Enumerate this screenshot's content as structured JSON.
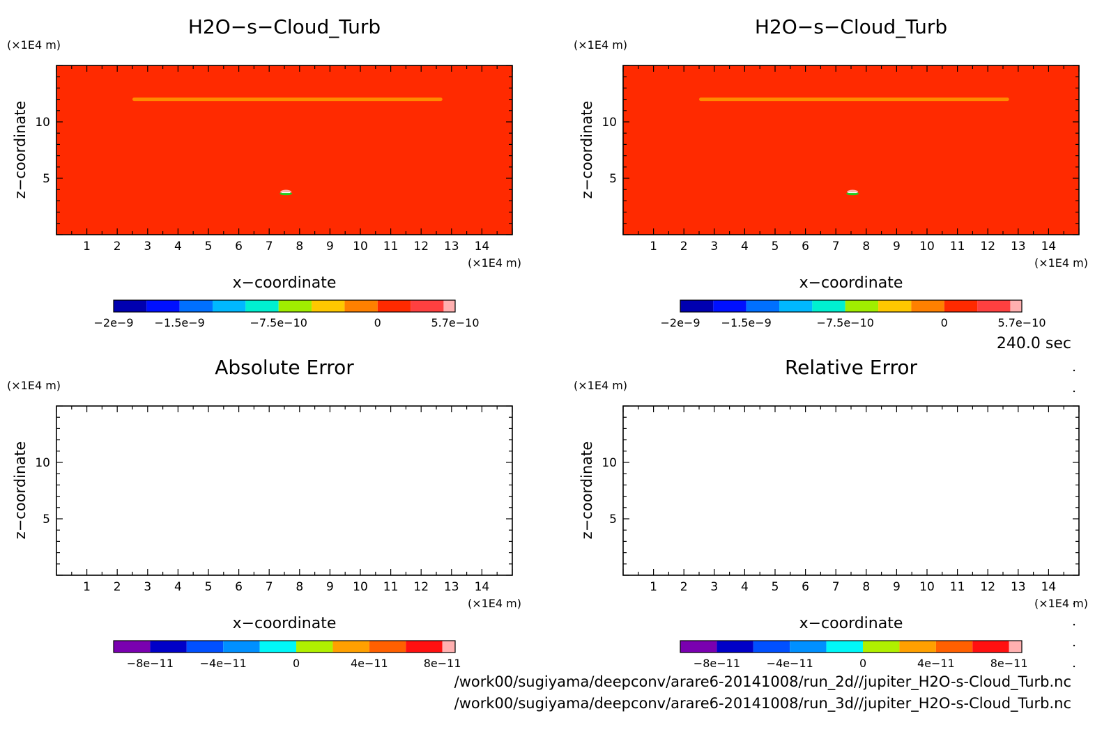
{
  "time_label": "240.0 sec",
  "file_paths": [
    "/work00/sugiyama/deepconv/arare6-20141008/run_2d//jupiter_H2O-s-Cloud_Turb.nc",
    "/work00/sugiyama/deepconv/arare6-20141008/run_3d//jupiter_H2O-s-Cloud_Turb.nc"
  ],
  "colors": {
    "field_background": "#ff2a00",
    "cloud_band": "#ff8a00",
    "anomaly_core": "#22cc22"
  },
  "chart_data": [
    {
      "type": "heatmap",
      "title": "H2O−s−Cloud_Turb",
      "xlabel": "x−coordinate",
      "ylabel": "z−coordinate",
      "x_unit": "(×1E4 m)",
      "y_unit": "(×1E4 m)",
      "xlim": [
        0,
        15
      ],
      "ylim": [
        0,
        15
      ],
      "x_ticks": [
        "1",
        "2",
        "3",
        "4",
        "5",
        "6",
        "7",
        "8",
        "9",
        "10",
        "11",
        "12",
        "13",
        "14"
      ],
      "y_ticks": [
        "5",
        "10"
      ],
      "features": [
        {
          "kind": "band",
          "x": [
            2.5,
            12.7
          ],
          "z": 12.0,
          "value_class": 7
        },
        {
          "kind": "spot",
          "x": 7.55,
          "z": 3.7,
          "value_class": 4
        }
      ],
      "colorbar": {
        "colors": [
          "#0000b0",
          "#0010ff",
          "#0070ff",
          "#00b8ff",
          "#00f0d0",
          "#a0ee00",
          "#ffc800",
          "#ff8000",
          "#ff2a00",
          "#ff4040",
          "#ffb0b0"
        ],
        "labels": [
          "−2e−9",
          "−1.5e−9",
          "−7.5e−10",
          "0",
          "5.7e−10"
        ]
      },
      "grid": false
    },
    {
      "type": "heatmap",
      "title": "H2O−s−Cloud_Turb",
      "xlabel": "x−coordinate",
      "ylabel": "z−coordinate",
      "x_unit": "(×1E4 m)",
      "y_unit": "(×1E4 m)",
      "xlim": [
        0,
        15
      ],
      "ylim": [
        0,
        15
      ],
      "x_ticks": [
        "1",
        "2",
        "3",
        "4",
        "5",
        "6",
        "7",
        "8",
        "9",
        "10",
        "11",
        "12",
        "13",
        "14"
      ],
      "y_ticks": [
        "5",
        "10"
      ],
      "features": [
        {
          "kind": "band",
          "x": [
            2.5,
            12.7
          ],
          "z": 12.0,
          "value_class": 7
        },
        {
          "kind": "spot",
          "x": 7.55,
          "z": 3.7,
          "value_class": 4
        }
      ],
      "colorbar": {
        "colors": [
          "#0000b0",
          "#0010ff",
          "#0070ff",
          "#00b8ff",
          "#00f0d0",
          "#a0ee00",
          "#ffc800",
          "#ff8000",
          "#ff2a00",
          "#ff4040",
          "#ffb0b0"
        ],
        "labels": [
          "−2e−9",
          "−1.5e−9",
          "−7.5e−10",
          "0",
          "5.7e−10"
        ]
      },
      "grid": false
    },
    {
      "type": "heatmap",
      "title": "Absolute Error",
      "xlabel": "x−coordinate",
      "ylabel": "z−coordinate",
      "x_unit": "(×1E4 m)",
      "y_unit": "(×1E4 m)",
      "xlim": [
        0,
        15
      ],
      "ylim": [
        0,
        15
      ],
      "x_ticks": [
        "1",
        "2",
        "3",
        "4",
        "5",
        "6",
        "7",
        "8",
        "9",
        "10",
        "11",
        "12",
        "13",
        "14"
      ],
      "y_ticks": [
        "5",
        "10"
      ],
      "features": [],
      "colorbar": {
        "colors": [
          "#7a00b0",
          "#0000c8",
          "#0050ff",
          "#0090ff",
          "#00f8f8",
          "#b0f000",
          "#ffa000",
          "#ff6000",
          "#ff1010",
          "#ffb0b0"
        ],
        "labels": [
          "−8e−11",
          "−4e−11",
          "0",
          "4e−11",
          "8e−11"
        ]
      },
      "grid": false
    },
    {
      "type": "heatmap",
      "title": "Relative Error",
      "xlabel": "x−coordinate",
      "ylabel": "z−coordinate",
      "x_unit": "(×1E4 m)",
      "y_unit": "(×1E4 m)",
      "xlim": [
        0,
        15
      ],
      "ylim": [
        0,
        15
      ],
      "x_ticks": [
        "1",
        "2",
        "3",
        "4",
        "5",
        "6",
        "7",
        "8",
        "9",
        "10",
        "11",
        "12",
        "13",
        "14"
      ],
      "y_ticks": [
        "5",
        "10"
      ],
      "features": [],
      "colorbar": {
        "colors": [
          "#7a00b0",
          "#0000c8",
          "#0050ff",
          "#0090ff",
          "#00f8f8",
          "#b0f000",
          "#ffa000",
          "#ff6000",
          "#ff1010",
          "#ffb0b0"
        ],
        "labels": [
          "−8e−11",
          "−4e−11",
          "0",
          "4e−11",
          "8e−11"
        ]
      },
      "grid": false
    }
  ]
}
